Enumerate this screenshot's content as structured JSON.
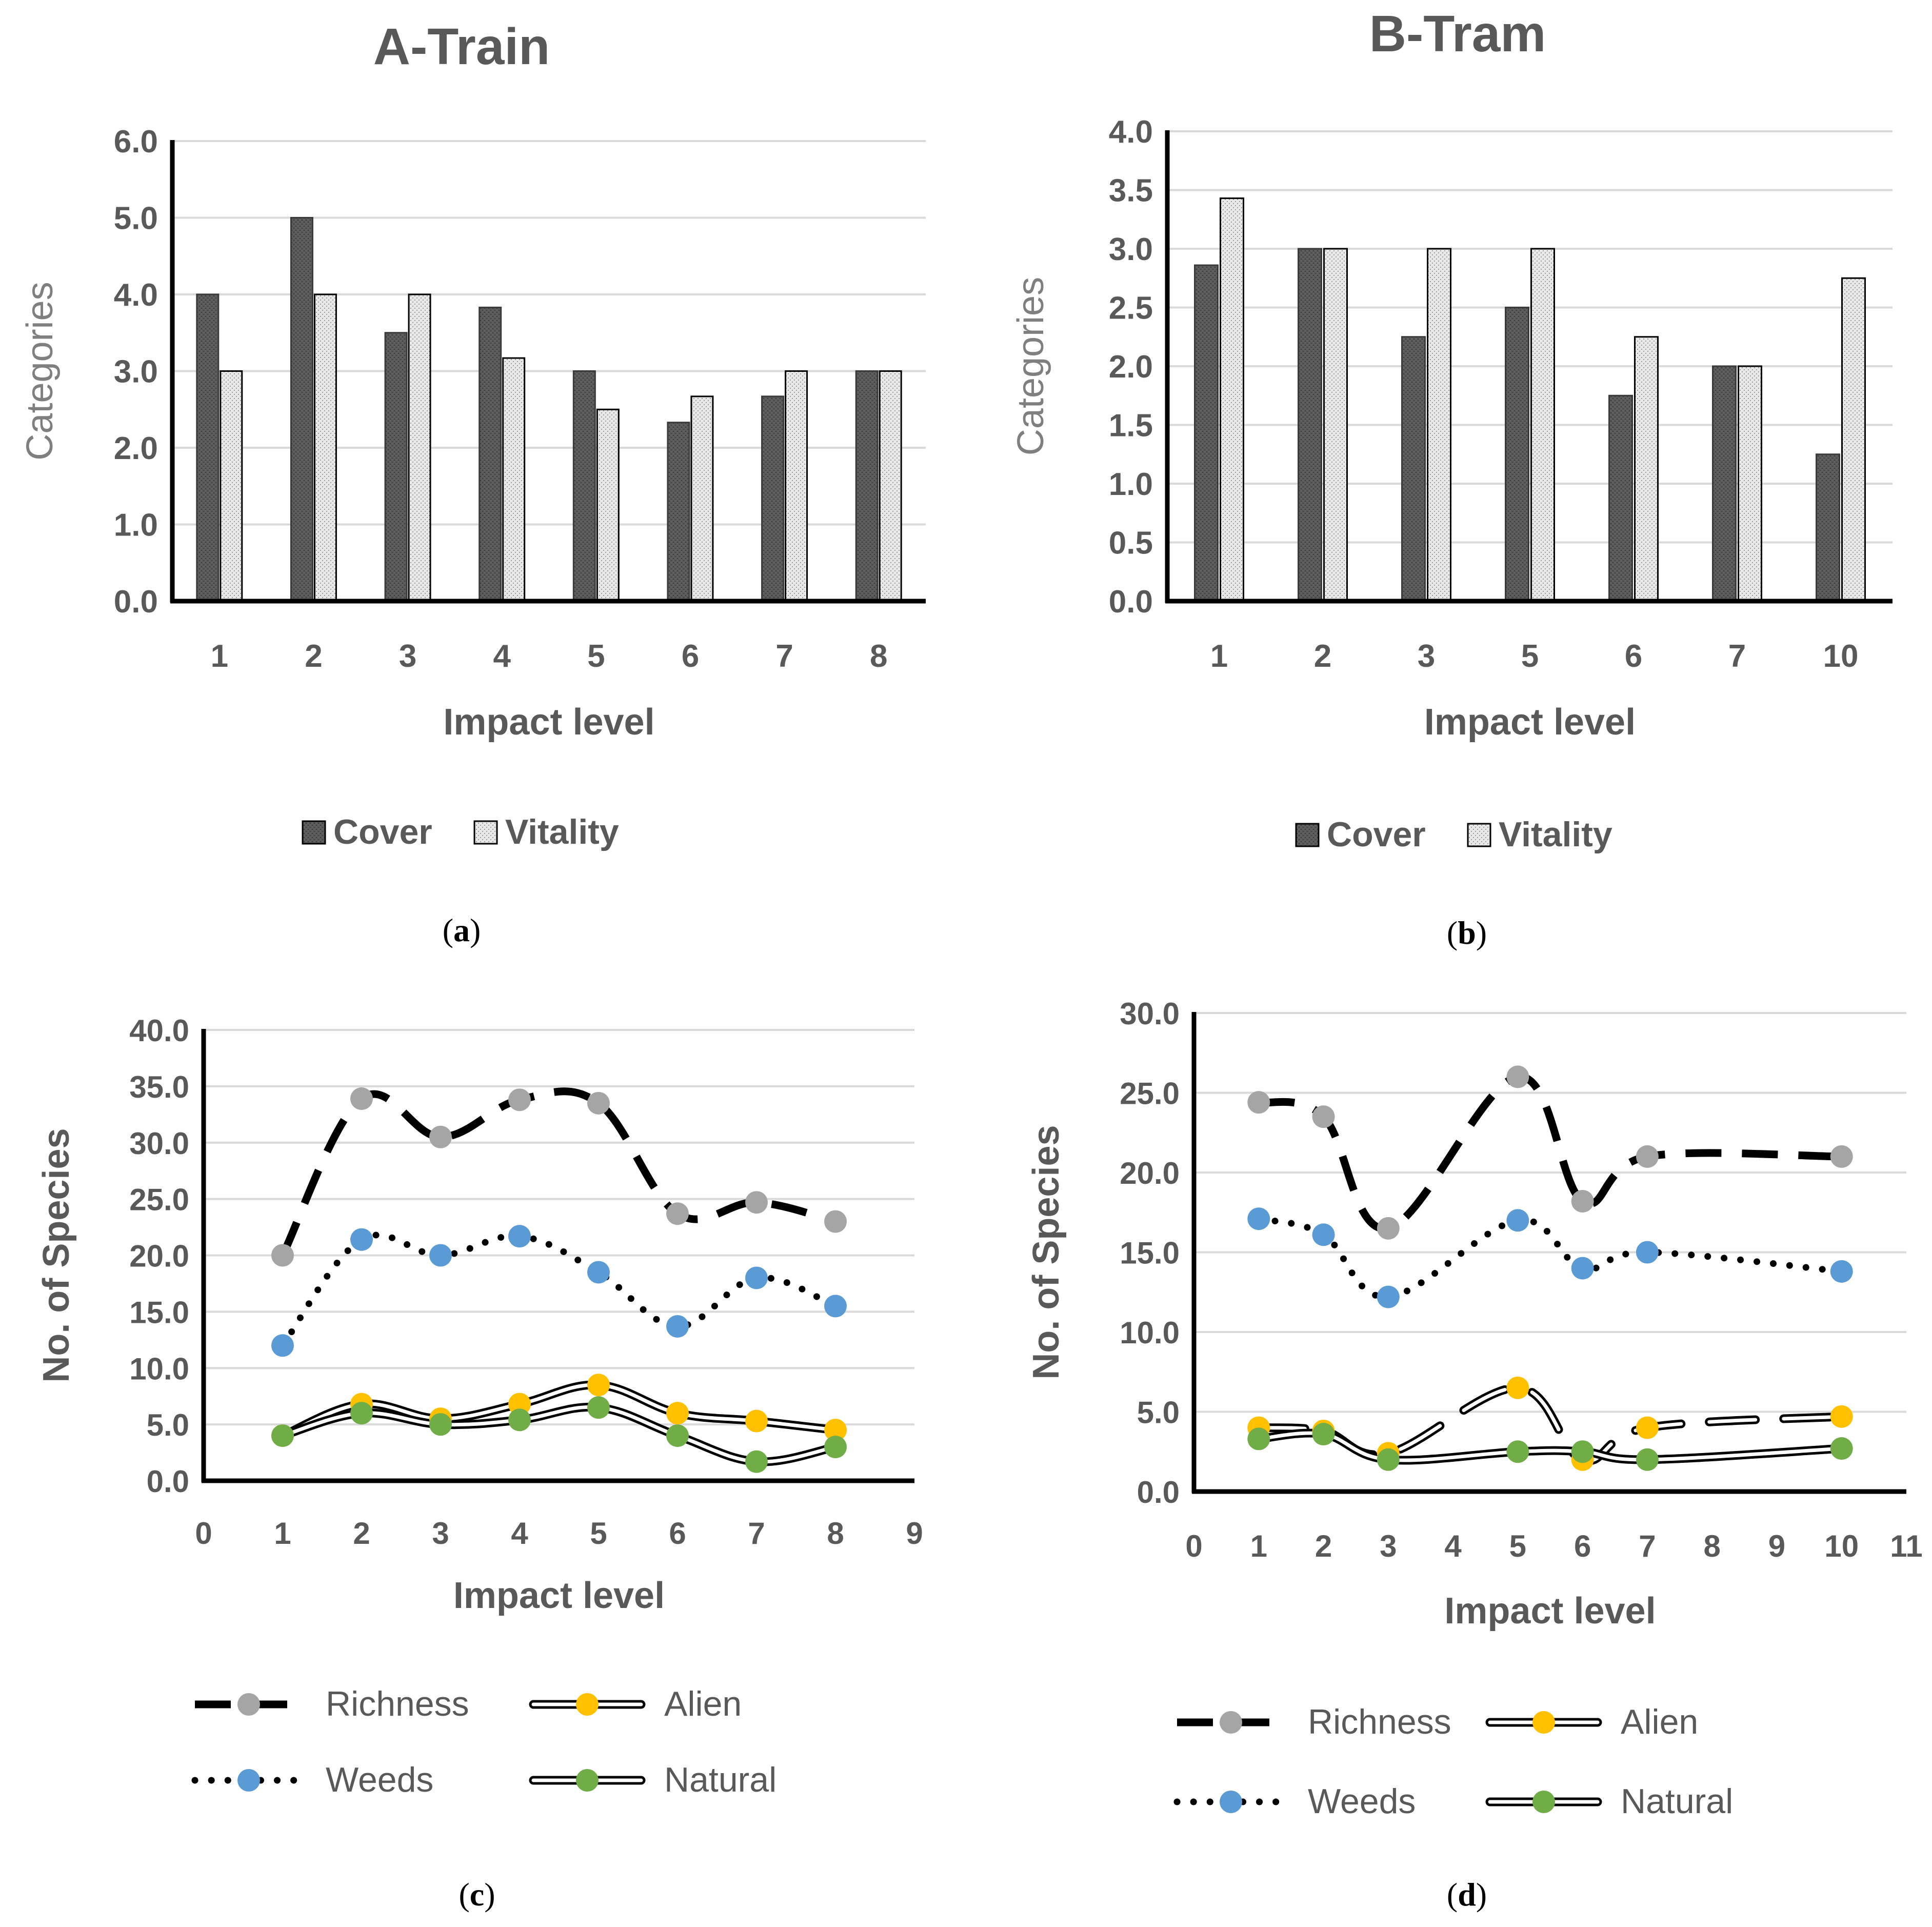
{
  "chart_data": [
    {
      "panel": "a",
      "panel_label": {
        "open": "(",
        "letter": "a",
        "close": ")"
      },
      "type": "bar",
      "title": "A-Train",
      "xlabel": "Impact level",
      "ylabel": "Categories",
      "categories": [
        "1",
        "2",
        "3",
        "4",
        "5",
        "6",
        "7",
        "8"
      ],
      "ylim": [
        0,
        6
      ],
      "yticks": [
        "0.0",
        "1.0",
        "2.0",
        "3.0",
        "4.0",
        "5.0",
        "6.0"
      ],
      "series": [
        {
          "name": "Cover",
          "values": [
            4.0,
            5.0,
            3.5,
            3.83,
            3.0,
            2.33,
            2.67,
            3.0
          ],
          "pattern": "dark"
        },
        {
          "name": "Vitality",
          "values": [
            3.0,
            4.0,
            4.0,
            3.17,
            2.5,
            2.67,
            3.0,
            3.0
          ],
          "pattern": "light"
        }
      ],
      "grid": true,
      "legend": "bottom"
    },
    {
      "panel": "b",
      "panel_label": {
        "open": "(",
        "letter": "b",
        "close": ")"
      },
      "type": "bar",
      "title": "B-Tram",
      "xlabel": "Impact level",
      "ylabel": "Categories",
      "categories": [
        "1",
        "2",
        "3",
        "5",
        "6",
        "7",
        "10"
      ],
      "ylim": [
        0,
        4
      ],
      "yticks": [
        "0.0",
        "0.5",
        "1.0",
        "1.5",
        "2.0",
        "2.5",
        "3.0",
        "3.5",
        "4.0"
      ],
      "series": [
        {
          "name": "Cover",
          "values": [
            2.86,
            3.0,
            2.25,
            2.5,
            1.75,
            2.0,
            1.25
          ],
          "pattern": "dark"
        },
        {
          "name": "Vitality",
          "values": [
            3.43,
            3.0,
            3.0,
            3.0,
            2.25,
            2.0,
            2.75
          ],
          "pattern": "light"
        }
      ],
      "grid": true,
      "legend": "bottom"
    },
    {
      "panel": "c",
      "panel_label": {
        "open": "(",
        "letter": "c",
        "close": ")"
      },
      "type": "line",
      "title": "",
      "xlabel": "Impact level",
      "ylabel": "No. of Species",
      "xlim": [
        0,
        9
      ],
      "xticks": [
        "0",
        "1",
        "2",
        "3",
        "4",
        "5",
        "6",
        "7",
        "8",
        "9"
      ],
      "ylim": [
        0,
        40
      ],
      "yticks": [
        "0.0",
        "5.0",
        "10.0",
        "15.0",
        "20.0",
        "25.0",
        "30.0",
        "35.0",
        "40.0"
      ],
      "x": [
        1,
        2,
        3,
        4,
        5,
        6,
        7,
        8
      ],
      "series": [
        {
          "name": "Richness",
          "values": [
            20.0,
            33.9,
            30.5,
            33.8,
            33.5,
            23.7,
            24.7,
            23.0
          ],
          "color": "#a5a5a5",
          "style": "dash"
        },
        {
          "name": "Alien",
          "values": [
            4.0,
            6.8,
            5.5,
            6.8,
            8.5,
            6.0,
            5.3,
            4.5
          ],
          "color": "#ffc000",
          "style": "double"
        },
        {
          "name": "Weeds",
          "values": [
            12.0,
            21.4,
            20.0,
            21.7,
            18.5,
            13.7,
            18.0,
            15.5
          ],
          "color": "#5b9bd5",
          "style": "dot"
        },
        {
          "name": "Natural",
          "values": [
            4.0,
            6.0,
            5.0,
            5.4,
            6.5,
            4.0,
            1.7,
            3.0
          ],
          "color": "#70ad47",
          "style": "double"
        }
      ],
      "grid": true,
      "legend": "bottom"
    },
    {
      "panel": "d",
      "panel_label": {
        "open": "(",
        "letter": "d",
        "close": ")"
      },
      "type": "line",
      "title": "",
      "xlabel": "Impact level",
      "ylabel": "No. of Species",
      "xlim": [
        0,
        11
      ],
      "xticks": [
        "0",
        "1",
        "2",
        "3",
        "4",
        "5",
        "6",
        "7",
        "8",
        "9",
        "10",
        "11"
      ],
      "ylim": [
        0,
        30
      ],
      "yticks": [
        "0.0",
        "5.0",
        "10.0",
        "15.0",
        "20.0",
        "25.0",
        "30.0"
      ],
      "x": [
        1,
        2,
        3,
        5,
        6,
        7,
        10
      ],
      "series": [
        {
          "name": "Richness",
          "values": [
            24.4,
            23.5,
            16.5,
            26.0,
            18.2,
            21.0,
            21.0
          ],
          "color": "#a5a5a5",
          "style": "dash"
        },
        {
          "name": "Alien",
          "values": [
            4.0,
            3.8,
            2.4,
            6.5,
            2.0,
            4.0,
            4.7
          ],
          "color": "#ffc000",
          "style": "double-broken"
        },
        {
          "name": "Weeds",
          "values": [
            17.1,
            16.1,
            12.2,
            17.0,
            14.0,
            15.0,
            13.8
          ],
          "color": "#5b9bd5",
          "style": "dot"
        },
        {
          "name": "Natural",
          "values": [
            3.3,
            3.6,
            2.0,
            2.5,
            2.5,
            2.0,
            2.7
          ],
          "color": "#70ad47",
          "style": "double"
        }
      ],
      "grid": true,
      "legend": "bottom"
    }
  ]
}
